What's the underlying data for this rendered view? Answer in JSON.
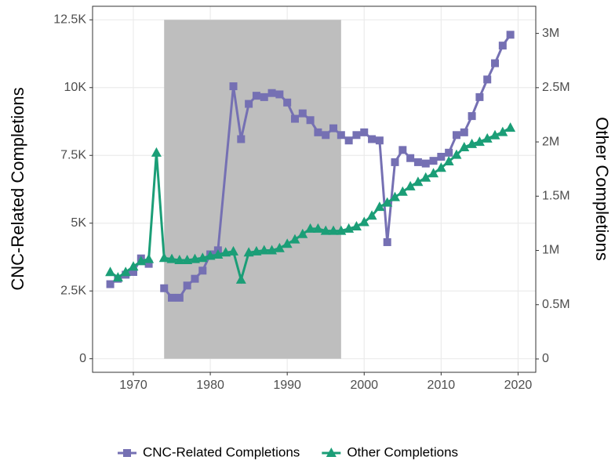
{
  "chart_data": {
    "type": "line",
    "xlabel": null,
    "ylabel": "CNC-Related Completions",
    "y2label": "Other Completions",
    "xlim": [
      1964.7,
      2022.3
    ],
    "xticks": [
      1970,
      1980,
      1990,
      2000,
      2010,
      2020
    ],
    "ylim": [
      -500,
      13000
    ],
    "yticks": [
      0,
      {
        "value": 2500,
        "label": "2.5K"
      },
      {
        "value": 5000,
        "label": "5K"
      },
      {
        "value": 7500,
        "label": "7.5K"
      },
      {
        "value": 10000,
        "label": "10K"
      },
      {
        "value": 12500,
        "label": "12.5K"
      }
    ],
    "y2lim": [
      -123000,
      3250000
    ],
    "y2ticks": [
      0,
      {
        "value": 500000,
        "label": "0.5M"
      },
      {
        "value": 1000000,
        "label": "1M"
      },
      {
        "value": 1500000,
        "label": "1.5M"
      },
      {
        "value": 2000000,
        "label": "2M"
      },
      {
        "value": 2500000,
        "label": "2.5M"
      },
      {
        "value": 3000000,
        "label": "3M"
      }
    ],
    "grid": true,
    "legend": "bottom",
    "shade": {
      "x": [
        1974,
        1997
      ],
      "y": [
        0,
        12500
      ],
      "color": "#bebebe"
    },
    "series": [
      {
        "name": "CNC-Related Completions",
        "color": "#7570b3",
        "marker": "square",
        "x": [
          1967,
          1968,
          1969,
          1970,
          1971,
          1972,
          1973,
          1974,
          1975,
          1976,
          1977,
          1978,
          1979,
          1980,
          1981,
          1983,
          1984,
          1985,
          1986,
          1987,
          1988,
          1989,
          1990,
          1991,
          1992,
          1993,
          1994,
          1995,
          1996,
          1997,
          1998,
          1999,
          2000,
          2001,
          2002,
          2003,
          2004,
          2005,
          2006,
          2007,
          2008,
          2009,
          2010,
          2011,
          2012,
          2013,
          2014,
          2015,
          2016,
          2017,
          2018,
          2019
        ],
        "values": [
          2750,
          2950,
          3100,
          3200,
          3700,
          3500,
          null,
          2600,
          2250,
          2250,
          2700,
          2950,
          3250,
          3850,
          4000,
          10050,
          8100,
          9400,
          9700,
          9650,
          9800,
          9750,
          9450,
          8850,
          9050,
          8800,
          8350,
          8250,
          8500,
          8250,
          8050,
          8250,
          8350,
          8100,
          8050,
          4300,
          7250,
          7700,
          7400,
          7250,
          7200,
          7300,
          7450,
          7600,
          8250,
          8350,
          8950,
          9650,
          10300,
          10900,
          11550,
          11950
        ]
      },
      {
        "name": "Other Completions",
        "color": "#1b9e77",
        "marker": "triangle",
        "axis": "y2",
        "x": [
          1967,
          1968,
          1969,
          1970,
          1971,
          1972,
          1973,
          1974,
          1975,
          1976,
          1977,
          1978,
          1979,
          1980,
          1981,
          1982,
          1983,
          1984,
          1985,
          1986,
          1987,
          1988,
          1989,
          1990,
          1991,
          1992,
          1993,
          1994,
          1995,
          1996,
          1997,
          1998,
          1999,
          2000,
          2001,
          2002,
          2003,
          2004,
          2005,
          2006,
          2007,
          2008,
          2009,
          2010,
          2011,
          2012,
          2013,
          2014,
          2015,
          2016,
          2017,
          2018,
          2019
        ],
        "values": [
          800000,
          750000,
          800000,
          850000,
          900000,
          920000,
          1900000,
          930000,
          920000,
          910000,
          910000,
          920000,
          930000,
          950000,
          960000,
          980000,
          990000,
          730000,
          980000,
          990000,
          1000000,
          1000000,
          1020000,
          1060000,
          1100000,
          1150000,
          1200000,
          1200000,
          1180000,
          1180000,
          1180000,
          1200000,
          1220000,
          1260000,
          1320000,
          1400000,
          1440000,
          1490000,
          1540000,
          1590000,
          1630000,
          1670000,
          1710000,
          1760000,
          1820000,
          1880000,
          1950000,
          1980000,
          2000000,
          2030000,
          2060000,
          2090000,
          2130000
        ]
      }
    ]
  }
}
